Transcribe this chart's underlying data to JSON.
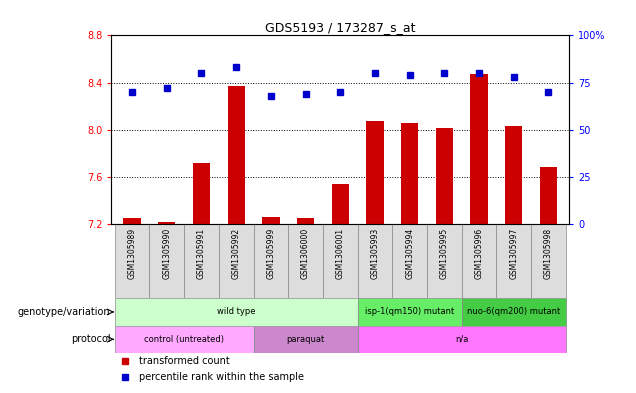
{
  "title": "GDS5193 / 173287_s_at",
  "samples": [
    "GSM1305989",
    "GSM1305990",
    "GSM1305991",
    "GSM1305992",
    "GSM1305999",
    "GSM1306000",
    "GSM1306001",
    "GSM1305993",
    "GSM1305994",
    "GSM1305995",
    "GSM1305996",
    "GSM1305997",
    "GSM1305998"
  ],
  "transformed_count": [
    7.25,
    7.22,
    7.72,
    8.37,
    7.26,
    7.25,
    7.54,
    8.07,
    8.06,
    8.01,
    8.47,
    8.03,
    7.68
  ],
  "percentile_rank": [
    70,
    72,
    80,
    83,
    68,
    69,
    70,
    80,
    79,
    80,
    80,
    78,
    70
  ],
  "ylim_left": [
    7.2,
    8.8
  ],
  "ylim_right": [
    0,
    100
  ],
  "yticks_left": [
    7.2,
    7.6,
    8.0,
    8.4,
    8.8
  ],
  "yticks_right": [
    0,
    25,
    50,
    75,
    100
  ],
  "bar_color": "#cc0000",
  "dot_color": "#0000cc",
  "dot_marker": "s",
  "dot_size": 4,
  "genotype_row": {
    "label": "genotype/variation",
    "groups": [
      {
        "text": "wild type",
        "start": 0,
        "end": 7,
        "color": "#ccffcc",
        "border": "#888888"
      },
      {
        "text": "isp-1(qm150) mutant",
        "start": 7,
        "end": 10,
        "color": "#66ee66",
        "border": "#888888"
      },
      {
        "text": "nuo-6(qm200) mutant",
        "start": 10,
        "end": 13,
        "color": "#44cc44",
        "border": "#888888"
      }
    ]
  },
  "protocol_row": {
    "label": "protocol",
    "groups": [
      {
        "text": "control (untreated)",
        "start": 0,
        "end": 4,
        "color": "#ffaaff",
        "border": "#888888"
      },
      {
        "text": "paraquat",
        "start": 4,
        "end": 7,
        "color": "#cc88cc",
        "border": "#888888"
      },
      {
        "text": "n/a",
        "start": 7,
        "end": 13,
        "color": "#ff77ff",
        "border": "#888888"
      }
    ]
  },
  "legend_items": [
    {
      "color": "#cc0000",
      "label": "transformed count"
    },
    {
      "color": "#0000cc",
      "label": "percentile rank within the sample"
    }
  ],
  "sample_bg": "#dddddd",
  "grid_style": "dotted",
  "plot_bg": "#ffffff"
}
